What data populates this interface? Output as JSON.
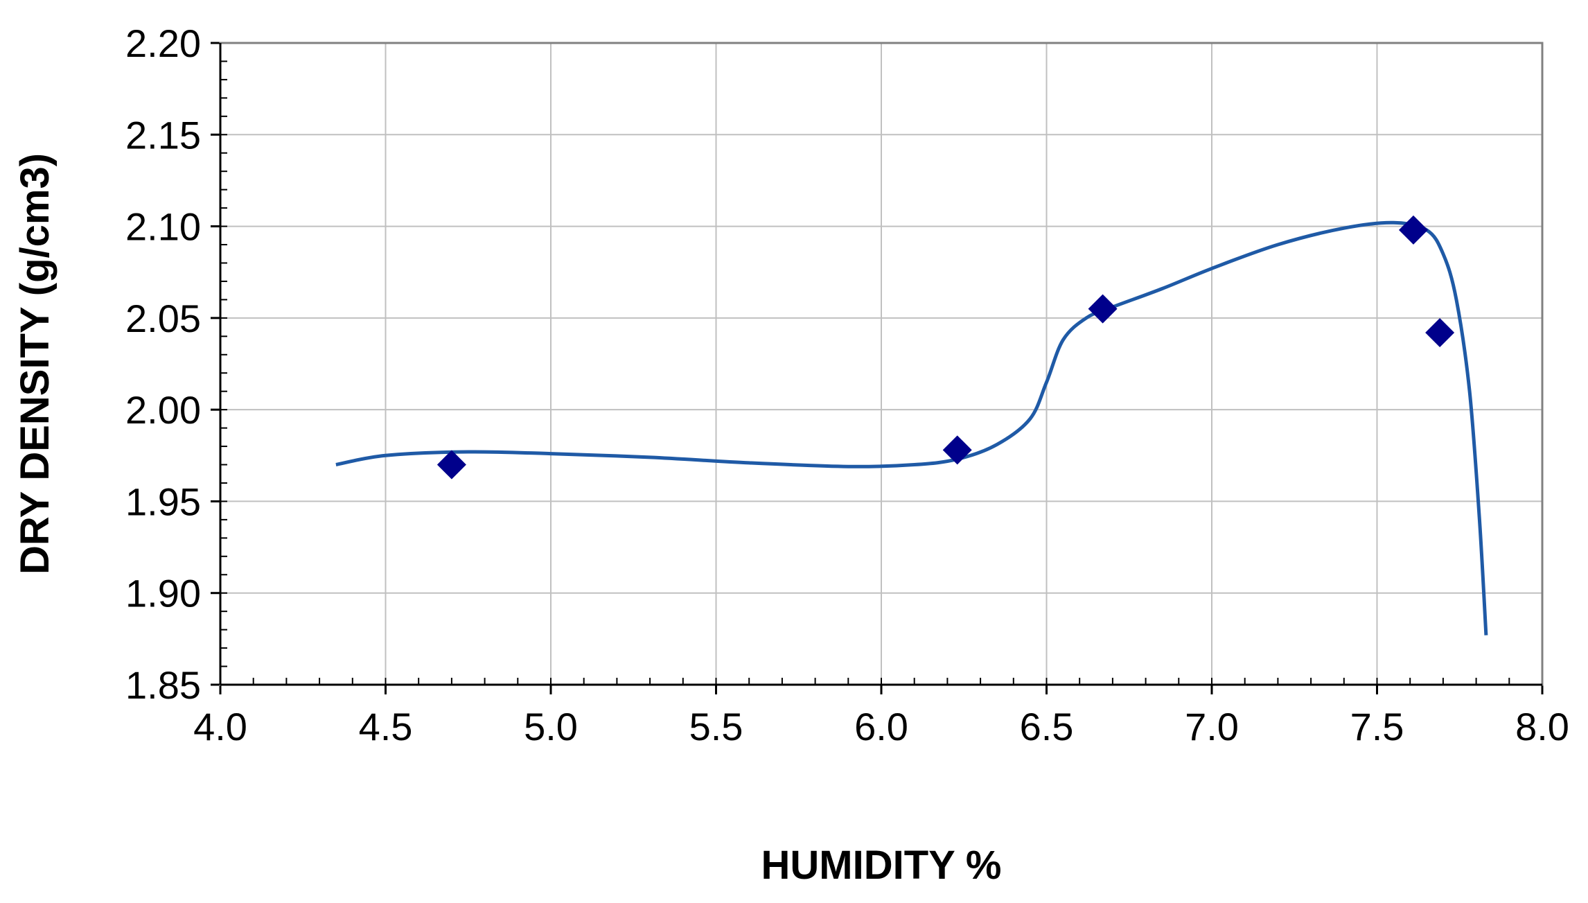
{
  "chart_data": {
    "type": "scatter",
    "title": "",
    "xlabel": "HUMIDITY  %",
    "ylabel": "DRY DENSITY (g/cm3)",
    "xlim": [
      4.0,
      8.0
    ],
    "ylim": [
      1.85,
      2.2
    ],
    "x_ticks": [
      "4.0",
      "4.5",
      "5.0",
      "5.5",
      "6.0",
      "6.5",
      "7.0",
      "7.5",
      "8.0"
    ],
    "y_ticks": [
      "1.85",
      "1.90",
      "1.95",
      "2.00",
      "2.05",
      "2.10",
      "2.15",
      "2.20"
    ],
    "grid": true,
    "legend": "none",
    "series": [
      {
        "kind": "points",
        "marker": "diamond",
        "color": "#00008B",
        "points": [
          {
            "x": 4.7,
            "y": 1.97
          },
          {
            "x": 6.23,
            "y": 1.978
          },
          {
            "x": 6.67,
            "y": 2.055
          },
          {
            "x": 7.61,
            "y": 2.098
          },
          {
            "x": 7.69,
            "y": 2.042
          }
        ]
      },
      {
        "kind": "curve",
        "color": "#1F5AA6",
        "points": [
          {
            "x": 4.35,
            "y": 1.97
          },
          {
            "x": 4.5,
            "y": 1.975
          },
          {
            "x": 4.75,
            "y": 1.977
          },
          {
            "x": 5.0,
            "y": 1.976
          },
          {
            "x": 5.3,
            "y": 1.974
          },
          {
            "x": 5.6,
            "y": 1.971
          },
          {
            "x": 5.9,
            "y": 1.969
          },
          {
            "x": 6.1,
            "y": 1.97
          },
          {
            "x": 6.23,
            "y": 1.973
          },
          {
            "x": 6.35,
            "y": 1.981
          },
          {
            "x": 6.45,
            "y": 1.995
          },
          {
            "x": 6.5,
            "y": 2.015
          },
          {
            "x": 6.55,
            "y": 2.038
          },
          {
            "x": 6.62,
            "y": 2.05
          },
          {
            "x": 6.7,
            "y": 2.056
          },
          {
            "x": 6.85,
            "y": 2.066
          },
          {
            "x": 7.0,
            "y": 2.077
          },
          {
            "x": 7.2,
            "y": 2.09
          },
          {
            "x": 7.4,
            "y": 2.099
          },
          {
            "x": 7.55,
            "y": 2.102
          },
          {
            "x": 7.65,
            "y": 2.098
          },
          {
            "x": 7.7,
            "y": 2.085
          },
          {
            "x": 7.74,
            "y": 2.06
          },
          {
            "x": 7.78,
            "y": 2.01
          },
          {
            "x": 7.81,
            "y": 1.94
          },
          {
            "x": 7.83,
            "y": 1.877
          }
        ]
      }
    ]
  }
}
